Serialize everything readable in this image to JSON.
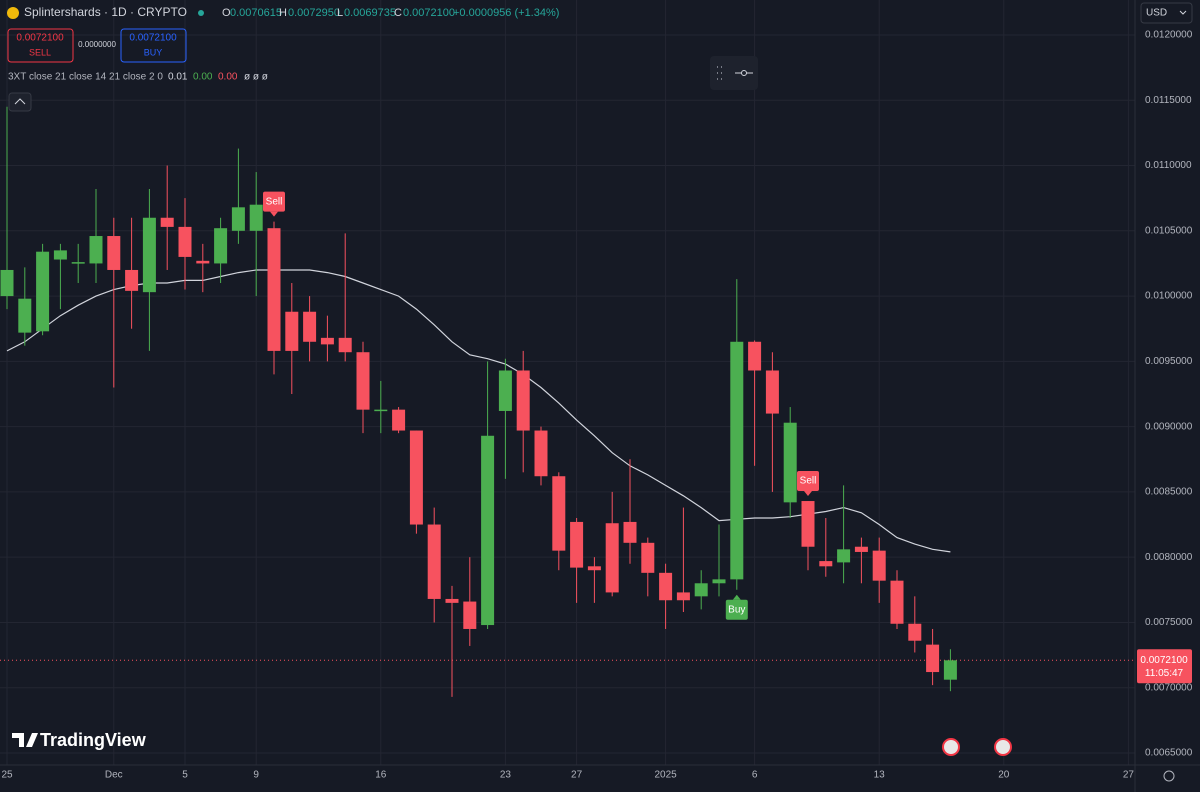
{
  "header": {
    "symbol": "Splintershards · 1D · CRYPTO",
    "o_label": "O",
    "o": "0.0070615",
    "h_label": "H",
    "h": "0.0072950",
    "l_label": "L",
    "l": "0.0069735",
    "c_label": "C",
    "c": "0.0072100",
    "change": "+0.0000956 (+1.34%)",
    "sell_price": "0.0072100",
    "sell": "SELL",
    "spread": "0.0000000",
    "buy_price": "0.0072100",
    "buy": "BUY",
    "indicator": "3XT close 21 close 14 21 close 2 0",
    "ind_v1": "0.01",
    "ind_v2": "0.00",
    "ind_v3": "0.00",
    "ind_v4": "ø ø ø",
    "currency": "USD",
    "logo": "TradingView"
  },
  "chart_data": {
    "type": "candlestick",
    "categories": [
      "25",
      null,
      null,
      null,
      null,
      null,
      "Dec",
      null,
      null,
      null,
      "5",
      null,
      null,
      null,
      "9",
      null,
      null,
      null,
      null,
      null,
      null,
      "16",
      null,
      null,
      null,
      null,
      null,
      null,
      "23",
      null,
      null,
      null,
      "27",
      null,
      null,
      null,
      null,
      "2025",
      null,
      null,
      null,
      null,
      "6",
      null,
      null,
      null,
      null,
      null,
      null,
      "13",
      null,
      null,
      null,
      null,
      null,
      null,
      "20",
      null,
      null,
      null,
      null,
      null,
      null,
      "27"
    ],
    "open": [
      0.01,
      0.00972,
      0.00973,
      0.01028,
      0.01026,
      0.01025,
      0.01046,
      0.0102,
      0.01003,
      0.0106,
      0.01053,
      0.01027,
      0.01025,
      0.0105,
      0.0105,
      0.01052,
      0.00988,
      0.00988,
      0.00968,
      0.00968,
      0.00957,
      0.00913,
      0.00913,
      0.00897,
      0.00825,
      0.00768,
      0.00766,
      0.00748,
      0.00912,
      0.00943,
      0.00897,
      0.00862,
      0.00827,
      0.00793,
      0.00826,
      0.00827,
      0.00811,
      0.00788,
      0.00773,
      0.0077,
      0.0078,
      0.00783,
      0.00965,
      0.00943,
      0.00842,
      0.00843,
      0.00797,
      0.00796,
      0.00808,
      0.00805,
      0.00782,
      0.00749,
      0.00733,
      0.0070615,
      null,
      null,
      null,
      null,
      null,
      null,
      null,
      null,
      null,
      null
    ],
    "high": [
      0.01145,
      0.01022,
      0.0104,
      0.0104,
      0.0104,
      0.01082,
      0.0106,
      0.0106,
      0.01082,
      0.011,
      0.01075,
      0.0104,
      0.0106,
      0.01113,
      0.01095,
      0.01057,
      0.0101,
      0.01,
      0.00985,
      0.01048,
      0.00965,
      0.00935,
      0.00915,
      0.00897,
      0.00838,
      0.00778,
      0.008,
      0.0095,
      0.00952,
      0.00958,
      0.009,
      0.00865,
      0.0083,
      0.008,
      0.0085,
      0.00875,
      0.00815,
      0.00795,
      0.00838,
      0.0079,
      0.00825,
      0.01013,
      0.00966,
      0.00957,
      0.00915,
      0.00843,
      0.0083,
      0.00855,
      0.00815,
      0.00815,
      0.0079,
      0.0077,
      0.00745,
      0.007295,
      null,
      null,
      null,
      null,
      null,
      null,
      null,
      null,
      null,
      null
    ],
    "low": [
      0.0099,
      0.00962,
      0.0097,
      0.0099,
      0.0101,
      0.0101,
      0.0093,
      0.00975,
      0.00958,
      0.0102,
      0.01005,
      0.01003,
      0.0101,
      0.0104,
      0.01,
      0.0094,
      0.00925,
      0.0095,
      0.0095,
      0.0095,
      0.00895,
      0.00895,
      0.00895,
      0.00818,
      0.0075,
      0.00693,
      0.00732,
      0.00745,
      0.0086,
      0.00865,
      0.00855,
      0.0079,
      0.00765,
      0.00765,
      0.0077,
      0.00795,
      0.0077,
      0.00745,
      0.00758,
      0.0076,
      0.0077,
      0.00775,
      0.0087,
      0.0085,
      0.0083,
      0.0079,
      0.00785,
      0.0078,
      0.0078,
      0.00765,
      0.00745,
      0.00727,
      0.00702,
      0.0069735,
      null,
      null,
      null,
      null,
      null,
      null,
      null,
      null,
      null,
      null
    ],
    "close": [
      0.0102,
      0.00998,
      0.01034,
      0.01035,
      0.01026,
      0.01046,
      0.0102,
      0.01004,
      0.0106,
      0.01053,
      0.0103,
      0.01025,
      0.01052,
      0.01068,
      0.0107,
      0.00958,
      0.00958,
      0.00965,
      0.00963,
      0.00957,
      0.00913,
      0.00913,
      0.00897,
      0.00825,
      0.00768,
      0.00765,
      0.00745,
      0.00893,
      0.00943,
      0.00897,
      0.00862,
      0.00805,
      0.00792,
      0.0079,
      0.00773,
      0.00811,
      0.00788,
      0.00767,
      0.00767,
      0.0078,
      0.00783,
      0.00965,
      0.00943,
      0.0091,
      0.00903,
      0.00808,
      0.00793,
      0.00806,
      0.00804,
      0.00782,
      0.00749,
      0.00736,
      0.00712,
      0.00721,
      null,
      null,
      null,
      null,
      null,
      null,
      null,
      null,
      null,
      null
    ],
    "ma_values": [
      0.00958,
      0.00965,
      0.00975,
      0.00985,
      0.00993,
      0.01,
      0.01005,
      0.01008,
      0.0101,
      0.0101,
      0.01012,
      0.01012,
      0.01015,
      0.01018,
      0.0102,
      0.0102,
      0.0102,
      0.0102,
      0.01018,
      0.01015,
      0.0101,
      0.01005,
      0.01,
      0.0099,
      0.00978,
      0.00965,
      0.00955,
      0.00952,
      0.00948,
      0.0094,
      0.0093,
      0.00918,
      0.00905,
      0.00893,
      0.0088,
      0.0087,
      0.00863,
      0.00855,
      0.00847,
      0.00838,
      0.00828,
      0.00829,
      0.0083,
      0.0083,
      0.00831,
      0.00833,
      0.00835,
      0.00838,
      0.00834,
      0.00825,
      0.00815,
      0.0081,
      0.00806,
      0.00804,
      null,
      null,
      null,
      null,
      null,
      null,
      null,
      null,
      null,
      null
    ],
    "signals": [
      null,
      null,
      null,
      null,
      null,
      null,
      null,
      null,
      null,
      null,
      null,
      null,
      null,
      null,
      null,
      "Sell",
      null,
      null,
      null,
      null,
      null,
      null,
      null,
      null,
      null,
      null,
      null,
      null,
      null,
      null,
      null,
      null,
      null,
      null,
      null,
      null,
      null,
      null,
      null,
      null,
      null,
      "Buy",
      null,
      null,
      null,
      "Sell",
      null,
      null,
      null,
      null,
      null,
      null,
      null,
      null,
      null,
      null,
      null,
      null,
      null,
      null,
      null,
      null,
      null,
      null
    ],
    "up_color": "#4caf50",
    "down_color": "#f7525f",
    "line_color": "#d1d4dc",
    "ylim": [
      0.006408,
      0.012268
    ],
    "yticks": [
      {
        "value": 0.0065,
        "label": "0.0065000"
      },
      {
        "value": 0.007,
        "label": "0.0070000"
      },
      {
        "value": 0.0075,
        "label": "0.0075000"
      },
      {
        "value": 0.008,
        "label": "0.0080000"
      },
      {
        "value": 0.0085,
        "label": "0.0085000"
      },
      {
        "value": 0.009,
        "label": "0.0090000"
      },
      {
        "value": 0.0095,
        "label": "0.0095000"
      },
      {
        "value": 0.01,
        "label": "0.0100000"
      },
      {
        "value": 0.0105,
        "label": "0.0105000"
      },
      {
        "value": 0.011,
        "label": "0.0110000"
      },
      {
        "value": 0.0115,
        "label": "0.0115000"
      },
      {
        "value": 0.012,
        "label": "0.0120000"
      }
    ],
    "last_price": {
      "value": 0.00721,
      "label": "0.0072100",
      "countdown": "11:05:47"
    },
    "grid": true
  }
}
